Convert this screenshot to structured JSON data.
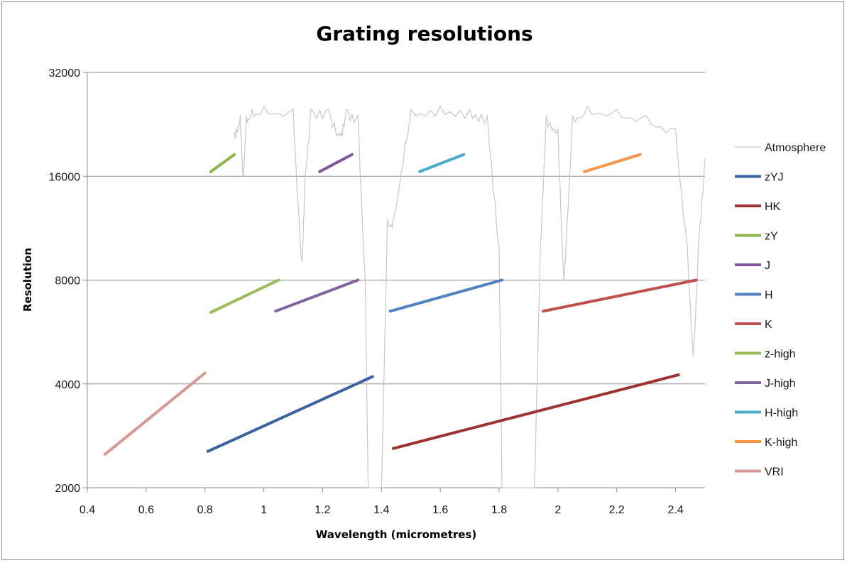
{
  "chart_data": {
    "type": "line",
    "title": "Grating resolutions",
    "xlabel": "Wavelength (micrometres)",
    "ylabel": "Resolution",
    "xlim": [
      0.4,
      2.5
    ],
    "ylim": [
      2000,
      32000
    ],
    "yscale": "log2",
    "x_ticks": [
      "0.4",
      "0.6",
      "0.8",
      "1",
      "1.2",
      "1.4",
      "1.6",
      "1.8",
      "2",
      "2.2",
      "2.4"
    ],
    "y_ticks": [
      "2000",
      "4000",
      "8000",
      "16000",
      "32000"
    ],
    "grid": "horizontal major gridlines",
    "legend_position": "right",
    "series": [
      {
        "name": "Atmosphere",
        "color": "#c8c8c8",
        "style": "atmospheric transmission trace",
        "points": [
          [
            0.9,
            21500
          ],
          [
            0.92,
            24000
          ],
          [
            0.93,
            16000
          ],
          [
            0.94,
            24000
          ],
          [
            0.96,
            25000
          ],
          [
            1.0,
            25500
          ],
          [
            1.1,
            25000
          ],
          [
            1.12,
            12000
          ],
          [
            1.13,
            9000
          ],
          [
            1.14,
            16000
          ],
          [
            1.16,
            25000
          ],
          [
            1.22,
            25000
          ],
          [
            1.26,
            21000
          ],
          [
            1.28,
            25000
          ],
          [
            1.32,
            24000
          ],
          [
            1.345,
            8000
          ],
          [
            1.355,
            2000
          ],
          [
            1.4,
            2000
          ],
          [
            1.42,
            12000
          ],
          [
            1.44,
            12000
          ],
          [
            1.48,
            20000
          ],
          [
            1.5,
            25000
          ],
          [
            1.6,
            25500
          ],
          [
            1.7,
            25000
          ],
          [
            1.76,
            24000
          ],
          [
            1.8,
            10000
          ],
          [
            1.81,
            2000
          ],
          [
            1.92,
            2000
          ],
          [
            1.94,
            10000
          ],
          [
            1.96,
            24000
          ],
          [
            2.0,
            22000
          ],
          [
            2.02,
            8000
          ],
          [
            2.05,
            24000
          ],
          [
            2.1,
            25500
          ],
          [
            2.2,
            25000
          ],
          [
            2.3,
            24000
          ],
          [
            2.4,
            22000
          ],
          [
            2.44,
            10000
          ],
          [
            2.46,
            4800
          ],
          [
            2.48,
            11000
          ],
          [
            2.5,
            18000
          ]
        ]
      },
      {
        "name": "zYJ",
        "color": "#3b63a0",
        "x": [
          0.81,
          1.37
        ],
        "y": [
          2550,
          4200
        ]
      },
      {
        "name": "HK",
        "color": "#9e3333",
        "x": [
          1.44,
          2.41
        ],
        "y": [
          2600,
          4250
        ]
      },
      {
        "name": "zY",
        "color": "#8db54a",
        "x": [
          0.82,
          0.9
        ],
        "y": [
          16500,
          18500
        ]
      },
      {
        "name": "J",
        "color": "#7e58a2",
        "x": [
          1.19,
          1.3
        ],
        "y": [
          16500,
          18500
        ]
      },
      {
        "name": "H",
        "color": "#4f82c1",
        "x": [
          1.43,
          1.81
        ],
        "y": [
          6500,
          8000
        ]
      },
      {
        "name": "K",
        "color": "#c0504d",
        "x": [
          1.95,
          2.47
        ],
        "y": [
          6500,
          8000
        ]
      },
      {
        "name": "z-high",
        "color": "#9bbb59",
        "x": [
          0.82,
          1.05
        ],
        "y": [
          6450,
          8000
        ]
      },
      {
        "name": "J-high",
        "color": "#8064a2",
        "x": [
          1.04,
          1.32
        ],
        "y": [
          6500,
          8000
        ]
      },
      {
        "name": "H-high",
        "color": "#4bacc6",
        "x": [
          1.53,
          1.68
        ],
        "y": [
          16500,
          18500
        ]
      },
      {
        "name": "K-high",
        "color": "#f79646",
        "x": [
          2.09,
          2.28
        ],
        "y": [
          16500,
          18500
        ]
      },
      {
        "name": "VRI",
        "color": "#d99795",
        "x": [
          0.46,
          0.8
        ],
        "y": [
          2500,
          4300
        ]
      }
    ]
  }
}
